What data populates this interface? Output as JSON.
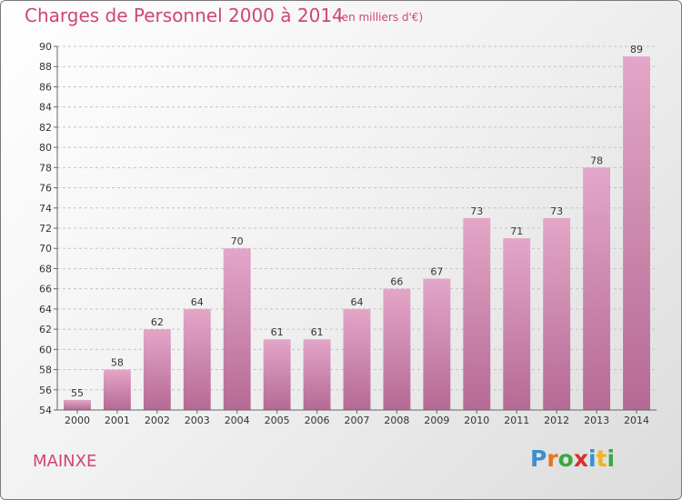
{
  "chart_data": {
    "type": "bar",
    "title": "Charges de Personnel 2000 à 2014",
    "subtitle": "(en milliers d'€)",
    "categories": [
      "2000",
      "2001",
      "2002",
      "2003",
      "2004",
      "2005",
      "2006",
      "2007",
      "2008",
      "2009",
      "2010",
      "2011",
      "2012",
      "2013",
      "2014"
    ],
    "values": [
      55,
      58,
      62,
      64,
      70,
      61,
      61,
      64,
      66,
      67,
      73,
      71,
      73,
      78,
      89
    ],
    "ylim": [
      54,
      90
    ],
    "yticks": [
      54,
      56,
      58,
      60,
      62,
      64,
      66,
      68,
      70,
      72,
      74,
      76,
      78,
      80,
      82,
      84,
      86,
      88,
      90
    ],
    "grid": true,
    "bar_color_top": "#e3a6c8",
    "bar_color_bottom": "#b56a93"
  },
  "footer": {
    "town": "MAINXE",
    "logo_letters": [
      {
        "ch": "P",
        "color": "#3a8fd0"
      },
      {
        "ch": "r",
        "color": "#e8731e"
      },
      {
        "ch": "o",
        "color": "#3aa844"
      },
      {
        "ch": "x",
        "color": "#d9302b"
      },
      {
        "ch": "i",
        "color": "#3a8fd0"
      },
      {
        "ch": "t",
        "color": "#f2b41a"
      },
      {
        "ch": "i",
        "color": "#3aa844"
      }
    ]
  }
}
